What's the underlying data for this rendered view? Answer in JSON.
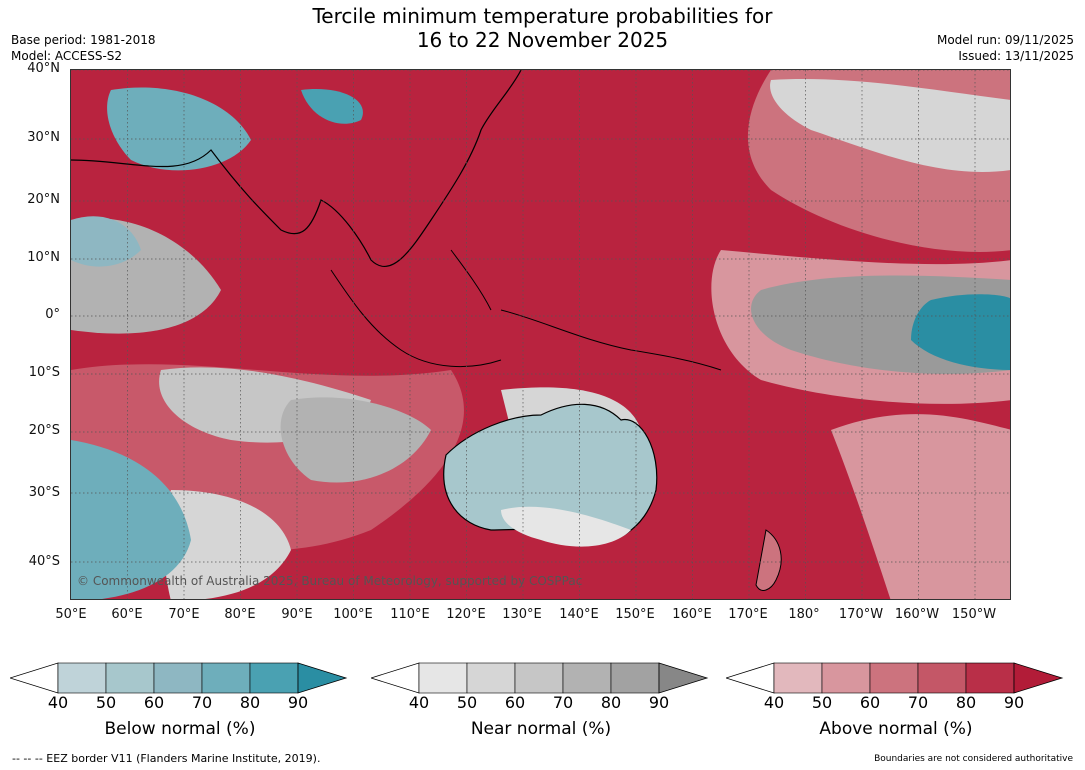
{
  "title_line1": "Tercile minimum temperature probabilities for",
  "title_line2": "16 to 22 November 2025",
  "base_period": "Base period: 1981-2018",
  "model": "Model: ACCESS-S2",
  "model_run": "Model run: 09/11/2025",
  "issued": "Issued: 13/11/2025",
  "copyright": "© Commonwealth of Australia 2025, Bureau of Meteorology, supported by COSPPac",
  "lat_ticks": [
    "40°N",
    "30°N",
    "20°N",
    "10°N",
    "0°",
    "10°S",
    "20°S",
    "30°S",
    "40°S"
  ],
  "lon_ticks": [
    "50°E",
    "60°E",
    "70°E",
    "80°E",
    "90°E",
    "100°E",
    "110°E",
    "120°E",
    "130°E",
    "140°E",
    "150°E",
    "160°E",
    "170°E",
    "180°",
    "170°W",
    "160°W",
    "150°W"
  ],
  "colorbars": [
    {
      "label": "Below normal (%)",
      "ticks": [
        "40",
        "50",
        "60",
        "70",
        "80",
        "90"
      ],
      "colors": [
        "#bfd3d9",
        "#a7c7cc",
        "#8eb7c2",
        "#6eaebb",
        "#4aa1b2",
        "#2a8ea3"
      ]
    },
    {
      "label": "Near normal (%)",
      "ticks": [
        "40",
        "50",
        "60",
        "70",
        "80",
        "90"
      ],
      "colors": [
        "#e6e6e6",
        "#d6d6d6",
        "#c6c6c6",
        "#b2b2b2",
        "#a2a2a2",
        "#878787"
      ]
    },
    {
      "label": "Above normal (%)",
      "ticks": [
        "40",
        "50",
        "60",
        "70",
        "80",
        "90"
      ],
      "colors": [
        "#e2b8bd",
        "#d8969e",
        "#cc737e",
        "#c45767",
        "#b92f48",
        "#b21c38"
      ]
    }
  ],
  "footer_left": "--  --  -- EEZ border V11 (Flanders Marine Institute, 2019).",
  "footer_right": "Boundaries are not considered authoritative"
}
